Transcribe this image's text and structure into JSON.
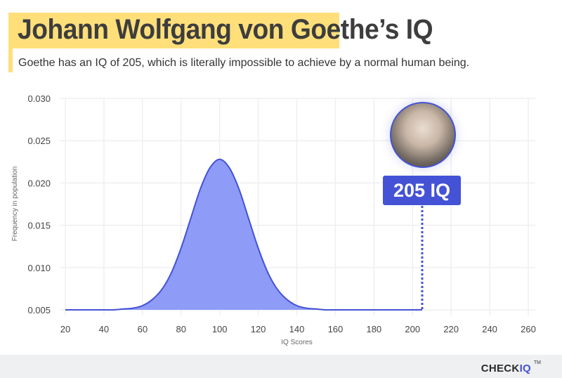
{
  "header": {
    "title": "Johann Wolfgang von Goethe’s IQ",
    "subtitle": "Goethe has an IQ of 205, which is literally impossible to achieve by a normal human being."
  },
  "colors": {
    "accent": "#4452d6",
    "fill": "#8e9bf7",
    "title_bg": "#ffdf7a"
  },
  "annotation": {
    "label": "205 IQ",
    "value": 205,
    "image": "goethe-portrait"
  },
  "footer": {
    "brand_a": "CHECK",
    "brand_b": "IQ",
    "tm": "TM"
  },
  "chart_data": {
    "type": "area",
    "xlabel": "IQ Scores",
    "ylabel": "Frequency in population",
    "xlim": [
      20,
      260
    ],
    "ylim": [
      0.005,
      0.03
    ],
    "xticks": [
      "20",
      "40",
      "60",
      "80",
      "100",
      "120",
      "140",
      "160",
      "180",
      "200",
      "220",
      "240",
      "260"
    ],
    "yticks": [
      "0.005",
      "0.010",
      "0.015",
      "0.020",
      "0.025",
      "0.030"
    ],
    "grid": true,
    "x": [
      20,
      25,
      30,
      35,
      40,
      45,
      50,
      55,
      60,
      65,
      70,
      75,
      80,
      85,
      90,
      95,
      100,
      105,
      110,
      115,
      120,
      125,
      130,
      135,
      140,
      145,
      150,
      155,
      160,
      165,
      170,
      175,
      180,
      185,
      190,
      195,
      200,
      205
    ],
    "y": [
      0.005,
      0.005,
      0.005,
      0.005,
      0.005,
      0.005,
      0.0051,
      0.0052,
      0.0055,
      0.0062,
      0.0074,
      0.0094,
      0.0123,
      0.0158,
      0.0193,
      0.0218,
      0.0228,
      0.0218,
      0.0193,
      0.0158,
      0.0123,
      0.0094,
      0.0074,
      0.0062,
      0.0055,
      0.0052,
      0.0051,
      0.005,
      0.005,
      0.005,
      0.005,
      0.005,
      0.005,
      0.005,
      0.005,
      0.005,
      0.005,
      0.005
    ]
  }
}
